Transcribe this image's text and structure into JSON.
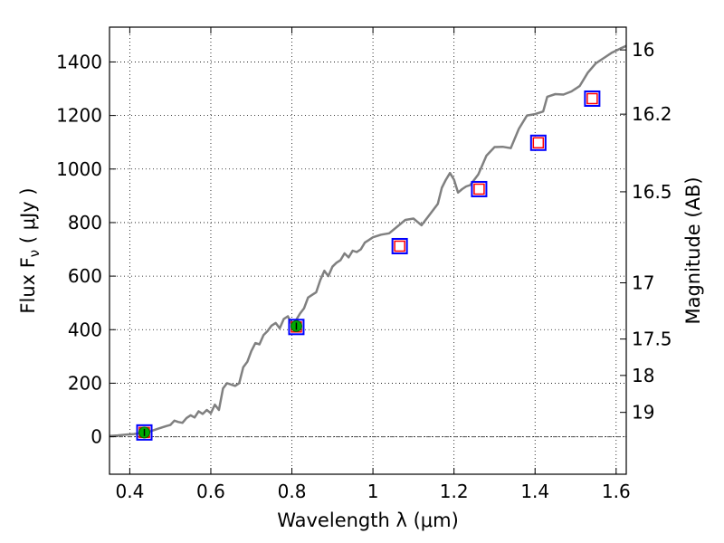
{
  "chart_data": {
    "type": "line",
    "xlabel": "Wavelength  λ (μm)",
    "ylabel": "Flux  F",
    "ylabel_sub": "ν",
    "ylabel_unit": "  ( μJy )",
    "y2label": "Magnitude (AB)",
    "xlim": [
      0.35,
      1.625
    ],
    "ylim": [
      -140,
      1530
    ],
    "grid": true,
    "xticks": [
      0.4,
      0.6,
      0.8,
      1.0,
      1.2,
      1.4,
      1.6
    ],
    "xtick_labels": [
      "0.4",
      "0.6",
      "0.8",
      "1",
      "1.2",
      "1.4",
      "1.6"
    ],
    "yticks": [
      0,
      200,
      400,
      600,
      800,
      1000,
      1200,
      1400
    ],
    "ytick_labels": [
      "0",
      "200",
      "400",
      "600",
      "800",
      "1000",
      "1200",
      "1400"
    ],
    "magnitude_ticks": [
      {
        "label": "16",
        "flux": 1445
      },
      {
        "label": "16.2",
        "flux": 1205
      },
      {
        "label": "16.5",
        "flux": 915
      },
      {
        "label": "17",
        "flux": 575
      },
      {
        "label": "17.5",
        "flux": 365
      },
      {
        "label": "18",
        "flux": 229
      },
      {
        "label": "19",
        "flux": 91
      }
    ],
    "zero_line": 0,
    "colors": {
      "spectrum": "#808080",
      "box": "#0000ff",
      "square_marker": "#ff0000",
      "circle_marker": "#00aa00",
      "grid": "#000000"
    },
    "series": [
      {
        "role": "model spectrum",
        "points": [
          [
            0.35,
            3
          ],
          [
            0.37,
            5
          ],
          [
            0.39,
            8
          ],
          [
            0.41,
            10
          ],
          [
            0.43,
            14
          ],
          [
            0.45,
            20
          ],
          [
            0.47,
            30
          ],
          [
            0.49,
            40
          ],
          [
            0.5,
            44
          ],
          [
            0.51,
            60
          ],
          [
            0.52,
            55
          ],
          [
            0.53,
            52
          ],
          [
            0.54,
            70
          ],
          [
            0.55,
            80
          ],
          [
            0.56,
            72
          ],
          [
            0.57,
            95
          ],
          [
            0.58,
            85
          ],
          [
            0.59,
            100
          ],
          [
            0.6,
            88
          ],
          [
            0.61,
            120
          ],
          [
            0.62,
            100
          ],
          [
            0.63,
            180
          ],
          [
            0.64,
            200
          ],
          [
            0.65,
            195
          ],
          [
            0.66,
            190
          ],
          [
            0.67,
            200
          ],
          [
            0.68,
            260
          ],
          [
            0.69,
            280
          ],
          [
            0.7,
            320
          ],
          [
            0.71,
            350
          ],
          [
            0.72,
            345
          ],
          [
            0.73,
            380
          ],
          [
            0.74,
            395
          ],
          [
            0.75,
            415
          ],
          [
            0.76,
            425
          ],
          [
            0.77,
            405
          ],
          [
            0.78,
            440
          ],
          [
            0.79,
            450
          ],
          [
            0.8,
            420
          ],
          [
            0.81,
            435
          ],
          [
            0.82,
            460
          ],
          [
            0.83,
            480
          ],
          [
            0.84,
            520
          ],
          [
            0.85,
            530
          ],
          [
            0.86,
            540
          ],
          [
            0.87,
            585
          ],
          [
            0.88,
            620
          ],
          [
            0.89,
            600
          ],
          [
            0.9,
            635
          ],
          [
            0.91,
            650
          ],
          [
            0.92,
            660
          ],
          [
            0.93,
            685
          ],
          [
            0.94,
            670
          ],
          [
            0.95,
            695
          ],
          [
            0.96,
            690
          ],
          [
            0.97,
            700
          ],
          [
            0.98,
            725
          ],
          [
            0.99,
            735
          ],
          [
            1.0,
            745
          ],
          [
            1.02,
            755
          ],
          [
            1.04,
            760
          ],
          [
            1.06,
            785
          ],
          [
            1.08,
            810
          ],
          [
            1.1,
            815
          ],
          [
            1.12,
            790
          ],
          [
            1.14,
            830
          ],
          [
            1.16,
            870
          ],
          [
            1.17,
            930
          ],
          [
            1.18,
            960
          ],
          [
            1.19,
            985
          ],
          [
            1.2,
            960
          ],
          [
            1.21,
            912
          ],
          [
            1.22,
            925
          ],
          [
            1.23,
            935
          ],
          [
            1.24,
            940
          ],
          [
            1.26,
            980
          ],
          [
            1.28,
            1050
          ],
          [
            1.3,
            1082
          ],
          [
            1.32,
            1083
          ],
          [
            1.34,
            1078
          ],
          [
            1.36,
            1150
          ],
          [
            1.38,
            1200
          ],
          [
            1.4,
            1205
          ],
          [
            1.42,
            1215
          ],
          [
            1.43,
            1270
          ],
          [
            1.45,
            1280
          ],
          [
            1.47,
            1278
          ],
          [
            1.49,
            1290
          ],
          [
            1.51,
            1310
          ],
          [
            1.53,
            1360
          ],
          [
            1.55,
            1395
          ],
          [
            1.57,
            1415
          ],
          [
            1.59,
            1435
          ],
          [
            1.61,
            1450
          ],
          [
            1.625,
            1460
          ]
        ]
      },
      {
        "role": "model photometry",
        "marker": "square",
        "points": [
          [
            0.436,
            16
          ],
          [
            0.811,
            410
          ],
          [
            1.066,
            712
          ],
          [
            1.262,
            925
          ],
          [
            1.408,
            1098
          ],
          [
            1.541,
            1263
          ]
        ]
      },
      {
        "role": "observed photometry",
        "marker": "circle",
        "points": [
          [
            0.436,
            16
          ],
          [
            0.811,
            413
          ]
        ]
      }
    ]
  }
}
